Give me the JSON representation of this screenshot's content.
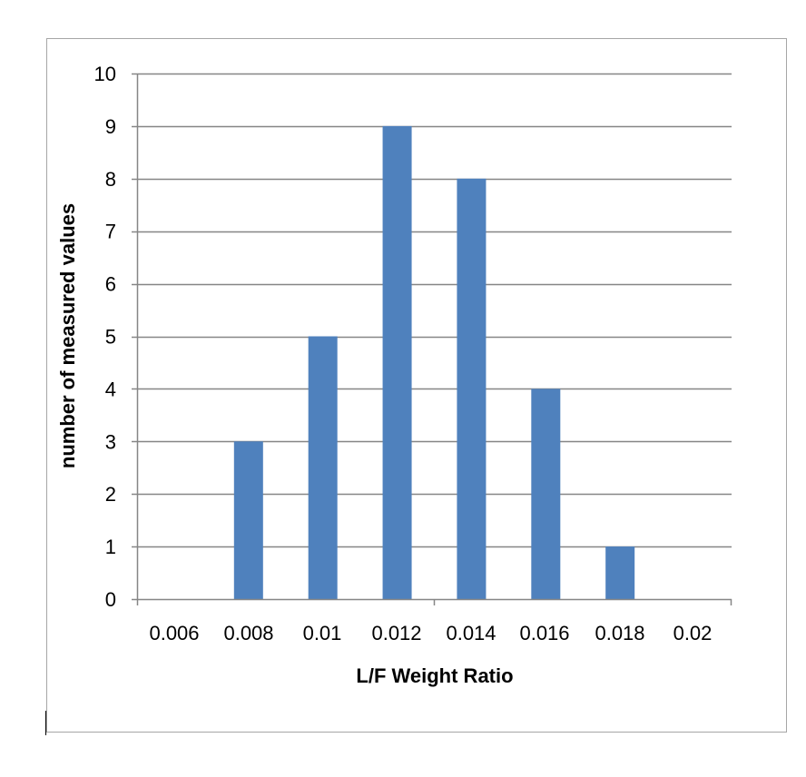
{
  "chart_data": {
    "type": "bar",
    "categories": [
      "0.006",
      "0.008",
      "0.01",
      "0.012",
      "0.014",
      "0.016",
      "0.018",
      "0.02"
    ],
    "values": [
      0,
      3,
      5,
      9,
      8,
      4,
      1,
      0
    ],
    "xlabel": "L/F Weight Ratio",
    "ylabel": "number of measured values",
    "ylim": [
      0,
      10
    ],
    "yticks": [
      0,
      1,
      2,
      3,
      4,
      5,
      6,
      7,
      8,
      9,
      10
    ],
    "grid": true,
    "legend": "none",
    "bar_color": "#4f81bd",
    "gridline_color": "#868686"
  }
}
